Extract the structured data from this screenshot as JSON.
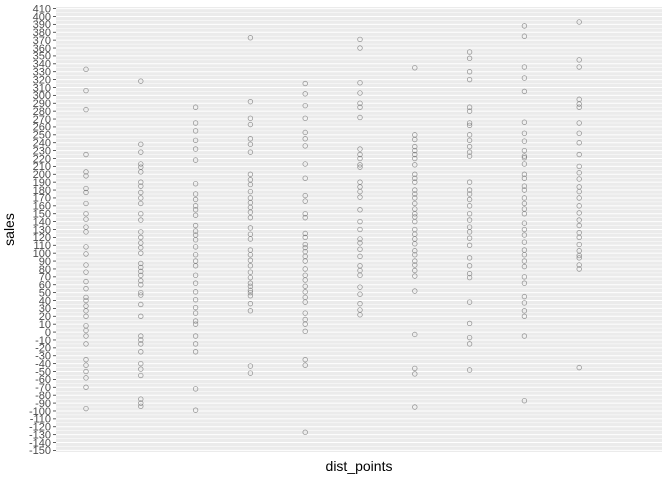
{
  "chart_data": {
    "type": "scatter",
    "title": "",
    "xlabel": "dist_points",
    "ylabel": "sales",
    "ylim": [
      -150,
      410
    ],
    "grid": true,
    "y_ticks": [
      -150,
      -140,
      -130,
      -120,
      -110,
      -100,
      -90,
      -80,
      -70,
      -60,
      -50,
      -40,
      -30,
      -20,
      -10,
      0,
      10,
      20,
      30,
      40,
      50,
      60,
      70,
      80,
      90,
      100,
      110,
      120,
      130,
      140,
      150,
      160,
      170,
      180,
      190,
      200,
      210,
      220,
      230,
      240,
      250,
      260,
      270,
      280,
      290,
      300,
      310,
      320,
      330,
      340,
      350,
      360,
      370,
      380,
      390,
      400,
      410
    ],
    "x_groups": 11,
    "points": [
      {
        "x": 1,
        "y": [
          333,
          306,
          282,
          225,
          203,
          198,
          182,
          177,
          163,
          150,
          143,
          133,
          127,
          108,
          99,
          85,
          76,
          64,
          55,
          44,
          40,
          33,
          27,
          20,
          8,
          2,
          -5,
          -15,
          -35,
          -42,
          -50,
          -58,
          -70,
          -97
        ]
      },
      {
        "x": 2,
        "y": [
          318,
          238,
          228,
          213,
          209,
          203,
          190,
          185,
          177,
          170,
          163,
          150,
          142,
          127,
          120,
          113,
          107,
          100,
          87,
          82,
          77,
          72,
          65,
          60,
          50,
          47,
          35,
          20,
          -5,
          -10,
          -15,
          -25,
          -40,
          -47,
          -55,
          -85,
          -90,
          -94
        ]
      },
      {
        "x": 3,
        "y": [
          285,
          265,
          255,
          243,
          232,
          218,
          188,
          175,
          168,
          160,
          155,
          148,
          135,
          128,
          123,
          117,
          108,
          98,
          90,
          84,
          72,
          62,
          51,
          41,
          31,
          24,
          14,
          10,
          -5,
          -15,
          -25,
          -72,
          -99
        ]
      },
      {
        "x": 4,
        "y": [
          373,
          292,
          271,
          263,
          245,
          238,
          228,
          200,
          193,
          187,
          178,
          170,
          164,
          158,
          152,
          145,
          132,
          124,
          118,
          104,
          98,
          91,
          84,
          76,
          69,
          62,
          58,
          53,
          50,
          46,
          36,
          27,
          -43,
          -52
        ]
      },
      {
        "x": 5,
        "y": [
          315,
          302,
          287,
          271,
          253,
          245,
          236,
          213,
          195,
          173,
          166,
          150,
          145,
          125,
          120,
          111,
          107,
          102,
          96,
          90,
          80,
          72,
          66,
          58,
          51,
          44,
          38,
          24,
          16,
          10,
          1,
          -35,
          -42,
          -127
        ]
      },
      {
        "x": 6,
        "y": [
          371,
          360,
          316,
          303,
          290,
          285,
          272,
          232,
          225,
          220,
          212,
          209,
          190,
          184,
          178,
          171,
          155,
          140,
          130,
          118,
          113,
          105,
          96,
          84,
          78,
          72,
          57,
          48,
          36,
          28,
          22
        ]
      },
      {
        "x": 7,
        "y": [
          335,
          250,
          244,
          235,
          230,
          225,
          220,
          212,
          200,
          195,
          190,
          180,
          175,
          170,
          163,
          156,
          150,
          146,
          140,
          130,
          124,
          118,
          112,
          103,
          98,
          90,
          85,
          78,
          71,
          52,
          -3,
          -46,
          -53,
          -95
        ]
      },
      {
        "x": 8,
        "y": [
          355,
          347,
          330,
          320,
          285,
          280,
          265,
          262,
          250,
          243,
          235,
          228,
          223,
          190,
          180,
          175,
          168,
          160,
          150,
          142,
          133,
          127,
          119,
          110,
          94,
          84,
          74,
          69,
          38,
          11,
          -7,
          -15,
          -48
        ]
      },
      {
        "x": 9,
        "y": [
          388,
          375,
          336,
          322,
          305,
          266,
          252,
          242,
          230,
          223,
          221,
          213,
          200,
          195,
          185,
          180,
          170,
          163,
          156,
          150,
          138,
          130,
          123,
          114,
          104,
          98,
          90,
          83,
          70,
          62,
          45,
          37,
          27,
          20,
          -5,
          -87
        ]
      },
      {
        "x": 10,
        "y": [
          393,
          345,
          336,
          295,
          289,
          285,
          265,
          252,
          240,
          225,
          210,
          202,
          194,
          184,
          178,
          170,
          160,
          151,
          142,
          135,
          126,
          120,
          111,
          103,
          97,
          94,
          85,
          80,
          -45
        ]
      }
    ]
  }
}
